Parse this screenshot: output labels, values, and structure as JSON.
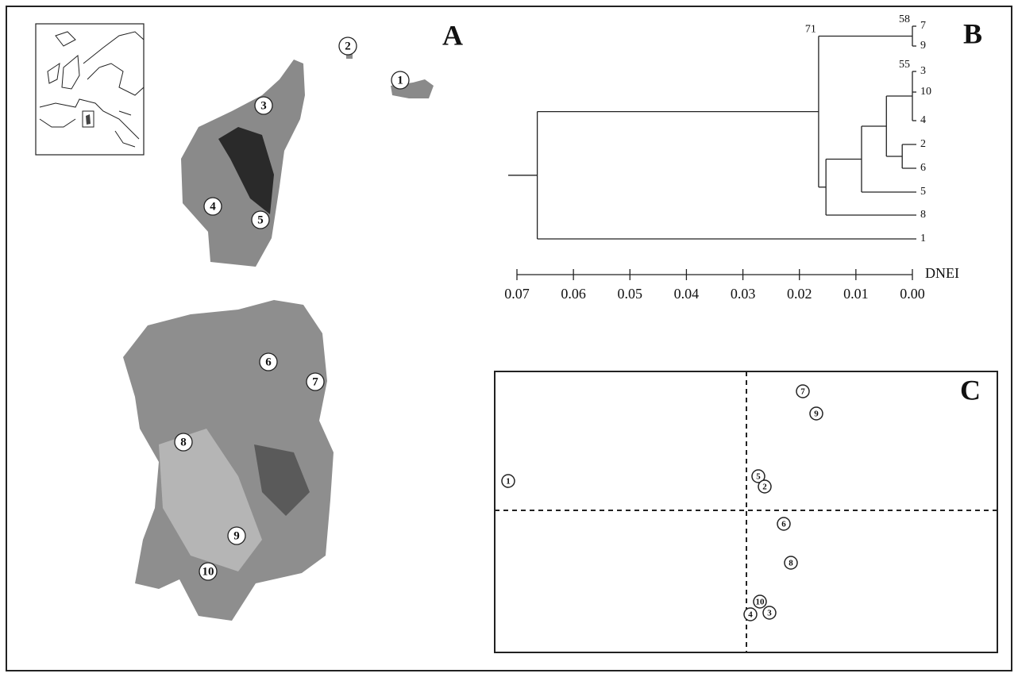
{
  "panel_a": {
    "label": "A",
    "sites": [
      "1",
      "2",
      "3",
      "4",
      "5",
      "6",
      "7",
      "8",
      "9",
      "10"
    ]
  },
  "panel_b": {
    "label": "B",
    "axis_label": "DNEI",
    "xlim": [
      0.07,
      0
    ],
    "xticks": [
      {
        "value": 0.07,
        "label": "0.07"
      },
      {
        "value": 0.06,
        "label": "0.06"
      },
      {
        "value": 0.05,
        "label": "0.05"
      },
      {
        "value": 0.04,
        "label": "0.04"
      },
      {
        "value": 0.03,
        "label": "0.03"
      },
      {
        "value": 0.02,
        "label": "0.02"
      },
      {
        "value": 0.01,
        "label": "0.01"
      },
      {
        "value": 0,
        "label": "0.00"
      }
    ],
    "tree": {
      "height": 0.0664,
      "children": [
        {
          "height": 0.0166,
          "support": "71",
          "children": [
            {
              "height": 0,
              "support": "58",
              "children": [
                {
                  "label": "7"
                },
                {
                  "label": "9"
                }
              ]
            },
            {
              "height": 0.0153,
              "children": [
                {
                  "height": 0.009,
                  "children": [
                    {
                      "height": 0.0046,
                      "children": [
                        {
                          "height": 0,
                          "support": "55",
                          "children": [
                            {
                              "label": "3"
                            },
                            {
                              "label": "10"
                            },
                            {
                              "label": "4"
                            }
                          ]
                        },
                        {
                          "height": 0.0018,
                          "children": [
                            {
                              "label": "2"
                            },
                            {
                              "label": "6"
                            }
                          ]
                        }
                      ]
                    },
                    {
                      "label": "5"
                    }
                  ]
                },
                {
                  "label": "8"
                }
              ]
            }
          ]
        },
        {
          "label": "1"
        }
      ]
    }
  },
  "panel_c": {
    "label": "C",
    "points": [
      "1",
      "7",
      "9",
      "5",
      "2",
      "6",
      "8",
      "10",
      "3",
      "4"
    ]
  }
}
